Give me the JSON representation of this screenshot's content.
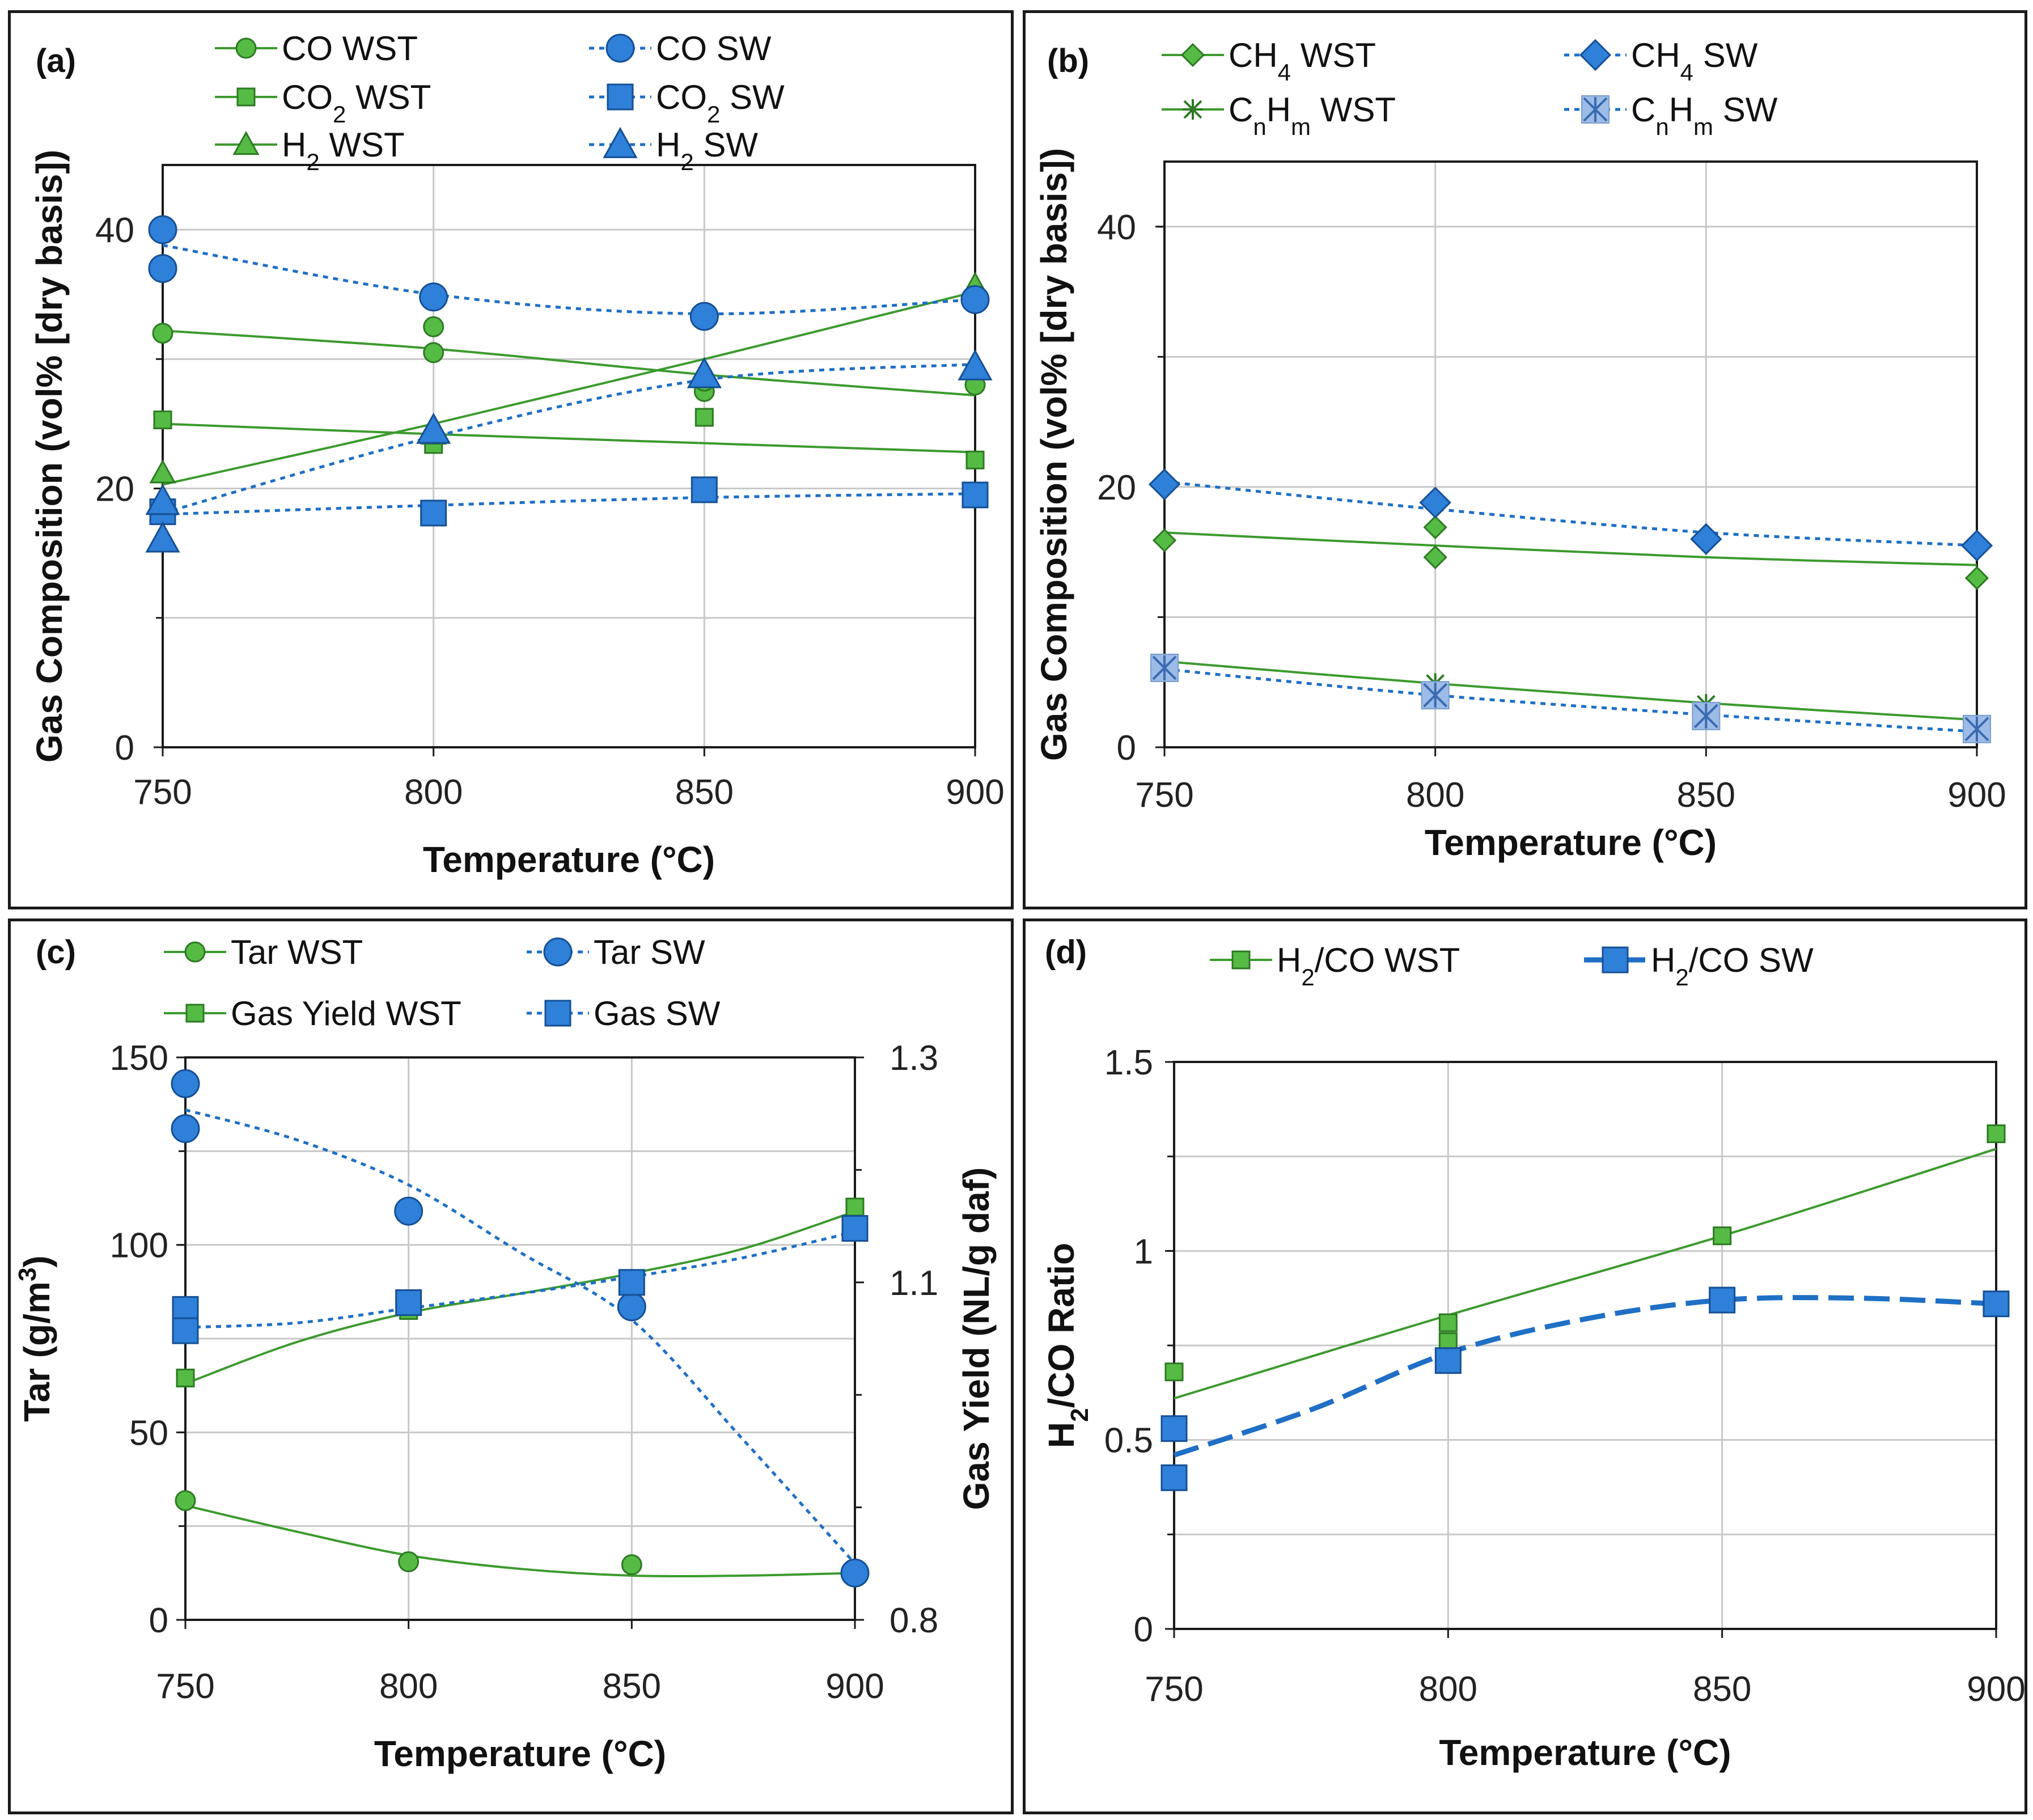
{
  "colors": {
    "green": "#3c9a2e",
    "green_fill": "#55bb44",
    "green_stroke": "#2c7a22",
    "blue": "#1f6fc5",
    "blue_fill": "#2e80d8",
    "blue_stroke": "#154f95",
    "light_blue_fill": "#9cbbe6",
    "grid": "#c8c8c8"
  },
  "chart_data": [
    {
      "id": "a",
      "type": "scatter",
      "panel_label": "(a)",
      "xlabel": "Temperature (°C)",
      "ylabel": "Gas Composition (vol% [dry basis])",
      "xlim": [
        750,
        900
      ],
      "ylim": [
        0,
        45
      ],
      "xticks": [
        750,
        800,
        850,
        900
      ],
      "xtick_labels": [
        "750",
        "800",
        "850",
        "900"
      ],
      "yticks": [
        0,
        20,
        40
      ],
      "ytick_labels": [
        "0",
        "20",
        "40"
      ],
      "ygrid": [
        10,
        20,
        30,
        40
      ],
      "series": [
        {
          "name": "CO WST",
          "legend_main": "CO",
          "legend_sub": "",
          "legend_tail": " WST",
          "color": "green",
          "marker": "circle",
          "line": "solid",
          "points": [
            [
              750,
              32.0
            ],
            [
              800,
              32.5
            ],
            [
              800,
              30.5
            ],
            [
              850,
              27.5
            ],
            [
              850,
              28.3
            ],
            [
              900,
              28.0
            ]
          ],
          "trend": [
            [
              750,
              32.2
            ],
            [
              800,
              30.8
            ],
            [
              850,
              28.8
            ],
            [
              900,
              27.2
            ]
          ]
        },
        {
          "name": "CO2 WST",
          "legend_main": "CO",
          "legend_sub": "2",
          "legend_tail": " WST",
          "color": "green",
          "marker": "square",
          "line": "solid",
          "points": [
            [
              750,
              25.3
            ],
            [
              800,
              23.4
            ],
            [
              850,
              25.5
            ],
            [
              900,
              22.2
            ]
          ],
          "trend": [
            [
              750,
              25.0
            ],
            [
              800,
              24.2
            ],
            [
              850,
              23.5
            ],
            [
              900,
              22.8
            ]
          ]
        },
        {
          "name": "H2 WST",
          "legend_main": "H",
          "legend_sub": "2",
          "legend_tail": " WST",
          "color": "green",
          "marker": "triangle",
          "line": "solid",
          "points": [
            [
              750,
              21.2
            ],
            [
              800,
              24.2
            ],
            [
              800,
              24.6
            ],
            [
              850,
              29.1
            ],
            [
              900,
              35.7
            ]
          ],
          "trend": [
            [
              750,
              20.3
            ],
            [
              800,
              25.0
            ],
            [
              850,
              30.0
            ],
            [
              900,
              35.2
            ]
          ]
        },
        {
          "name": "CO SW",
          "legend_main": "CO",
          "legend_sub": "",
          "legend_tail": " SW",
          "color": "blue",
          "marker": "circle",
          "line": "dotted",
          "points": [
            [
              750,
              40.0
            ],
            [
              750,
              37.0
            ],
            [
              800,
              34.8
            ],
            [
              850,
              33.3
            ],
            [
              900,
              34.6
            ]
          ],
          "trend": [
            [
              750,
              38.8
            ],
            [
              800,
              35.0
            ],
            [
              850,
              33.5
            ],
            [
              900,
              34.6
            ]
          ]
        },
        {
          "name": "CO2 SW",
          "legend_main": "CO",
          "legend_sub": "2",
          "legend_tail": " SW",
          "color": "blue",
          "marker": "square",
          "line": "dotted",
          "points": [
            [
              750,
              18.2
            ],
            [
              800,
              18.1
            ],
            [
              850,
              19.9
            ],
            [
              900,
              19.5
            ]
          ],
          "trend": [
            [
              750,
              18.0
            ],
            [
              800,
              18.7
            ],
            [
              850,
              19.3
            ],
            [
              900,
              19.6
            ]
          ]
        },
        {
          "name": "H2 SW",
          "legend_main": "H",
          "legend_sub": "2",
          "legend_tail": " SW",
          "color": "blue",
          "marker": "triangle",
          "line": "dotted",
          "points": [
            [
              750,
              19.0
            ],
            [
              750,
              16.1
            ],
            [
              800,
              24.5
            ],
            [
              850,
              28.8
            ],
            [
              900,
              29.4
            ]
          ],
          "trend": [
            [
              750,
              18.1
            ],
            [
              800,
              24.0
            ],
            [
              850,
              28.4
            ],
            [
              900,
              29.6
            ]
          ]
        }
      ]
    },
    {
      "id": "b",
      "type": "scatter",
      "panel_label": "(b)",
      "xlabel": "Temperature (°C)",
      "ylabel": "Gas Composition (vol% [dry basis])",
      "xlim": [
        750,
        900
      ],
      "ylim": [
        0,
        45
      ],
      "xticks": [
        750,
        800,
        850,
        900
      ],
      "xtick_labels": [
        "750",
        "800",
        "850",
        "900"
      ],
      "yticks": [
        0,
        20,
        40
      ],
      "ytick_labels": [
        "0",
        "20",
        "40"
      ],
      "ygrid": [
        10,
        20,
        30,
        40
      ],
      "series": [
        {
          "name": "CH4 WST",
          "legend_main": "CH",
          "legend_sub": "4",
          "legend_tail": " WST",
          "color": "green",
          "marker": "diamond",
          "line": "solid",
          "points": [
            [
              750,
              15.9
            ],
            [
              800,
              16.9
            ],
            [
              800,
              14.6
            ],
            [
              850,
              15.8
            ],
            [
              900,
              13.0
            ]
          ],
          "trend": [
            [
              750,
              16.5
            ],
            [
              800,
              15.5
            ],
            [
              850,
              14.6
            ],
            [
              900,
              14.0
            ]
          ]
        },
        {
          "name": "CnHm WST",
          "legend_main": "C",
          "legend_sub": "n",
          "legend_main2": "H",
          "legend_sub2": "m",
          "legend_tail": " WST",
          "color": "green",
          "marker": "star",
          "line": "solid",
          "points": [
            [
              750,
              6.2
            ],
            [
              800,
              4.9
            ],
            [
              850,
              3.3
            ],
            [
              900,
              1.4
            ]
          ],
          "trend": [
            [
              750,
              6.6
            ],
            [
              800,
              4.9
            ],
            [
              850,
              3.4
            ],
            [
              900,
              2.1
            ]
          ]
        },
        {
          "name": "CH4 SW",
          "legend_main": "CH",
          "legend_sub": "4",
          "legend_tail": " SW",
          "color": "blue",
          "marker": "diamond",
          "line": "dotted",
          "points": [
            [
              750,
              20.2
            ],
            [
              800,
              18.8
            ],
            [
              850,
              16.0
            ],
            [
              900,
              15.5
            ]
          ],
          "trend": [
            [
              750,
              20.4
            ],
            [
              800,
              18.3
            ],
            [
              850,
              16.5
            ],
            [
              900,
              15.5
            ]
          ]
        },
        {
          "name": "CnHm SW",
          "legend_main": "C",
          "legend_sub": "n",
          "legend_main2": "H",
          "legend_sub2": "m",
          "legend_tail": " SW",
          "color": "blue",
          "marker": "boxstar",
          "line": "dotted",
          "points": [
            [
              750,
              6.1
            ],
            [
              800,
              4.0
            ],
            [
              850,
              2.4
            ],
            [
              900,
              1.4
            ]
          ],
          "trend": [
            [
              750,
              6.0
            ],
            [
              800,
              4.0
            ],
            [
              850,
              2.5
            ],
            [
              900,
              1.2
            ]
          ]
        }
      ]
    },
    {
      "id": "c",
      "type": "scatter",
      "panel_label": "(c)",
      "xlabel": "Temperature (°C)",
      "ylabel": "Tar (g/m",
      "ylabel_sup": "3",
      "ylabel_tail": ")",
      "y2label": "Gas Yield (NL/g daf)",
      "xlim": [
        750,
        900
      ],
      "ylim": [
        0,
        150
      ],
      "y2lim": [
        0.8,
        1.3
      ],
      "xticks": [
        750,
        800,
        850,
        900
      ],
      "xtick_labels": [
        "750",
        "800",
        "850",
        "900"
      ],
      "yticks": [
        0,
        50,
        100,
        150
      ],
      "ytick_labels": [
        "0",
        "50",
        "100",
        "150"
      ],
      "ygrid": [
        25,
        50,
        75,
        100,
        125
      ],
      "y2ticks": [
        0.8,
        1.1,
        1.3
      ],
      "y2tick_labels": [
        "0.8",
        "1.1",
        "1.3"
      ],
      "y2minor": [
        0.9,
        1.0,
        1.2
      ],
      "series": [
        {
          "name": "Tar WST",
          "legend_main": "Tar WST",
          "legend_sub": "",
          "legend_tail": "",
          "color": "green",
          "marker": "circle",
          "line": "solid",
          "axis": "left",
          "points": [
            [
              750,
              31.8
            ],
            [
              800,
              15.5
            ],
            [
              850,
              14.7
            ],
            [
              900,
              12.5
            ]
          ],
          "trend": [
            [
              750,
              30.5
            ],
            [
              775,
              23.5
            ],
            [
              800,
              17.2
            ],
            [
              825,
              13.6
            ],
            [
              850,
              11.8
            ],
            [
              875,
              11.8
            ],
            [
              900,
              12.5
            ]
          ]
        },
        {
          "name": "Gas Yield WST",
          "legend_main": "Gas Yield WST",
          "legend_sub": "",
          "legend_tail": "",
          "color": "green",
          "marker": "square",
          "line": "solid",
          "axis": "right",
          "points": [
            [
              750,
              1.015
            ],
            [
              800,
              1.075
            ],
            [
              850,
              1.1
            ],
            [
              900,
              1.167
            ]
          ],
          "trend": [
            [
              750,
              1.01
            ],
            [
              775,
              1.047
            ],
            [
              800,
              1.073
            ],
            [
              825,
              1.09
            ],
            [
              850,
              1.108
            ],
            [
              875,
              1.13
            ],
            [
              900,
              1.163
            ]
          ]
        },
        {
          "name": "Tar SW",
          "legend_main": "Tar SW",
          "legend_sub": "",
          "legend_tail": "",
          "color": "blue",
          "marker": "circle",
          "line": "dotted",
          "axis": "left",
          "points": [
            [
              750,
              143
            ],
            [
              750,
              131
            ],
            [
              800,
              109
            ],
            [
              850,
              83.5
            ],
            [
              900,
              12.5
            ]
          ],
          "trend": [
            [
              750,
              136
            ],
            [
              775,
              128
            ],
            [
              800,
              116
            ],
            [
              825,
              98
            ],
            [
              850,
              80
            ],
            [
              875,
              48
            ],
            [
              900,
              15
            ]
          ]
        },
        {
          "name": "Gas SW",
          "legend_main": "Gas SW",
          "legend_sub": "",
          "legend_tail": "",
          "color": "blue",
          "marker": "square",
          "line": "dotted",
          "axis": "right",
          "points": [
            [
              750,
              1.076
            ],
            [
              750,
              1.057
            ],
            [
              800,
              1.082
            ],
            [
              850,
              1.1
            ],
            [
              900,
              1.148
            ]
          ],
          "trend": [
            [
              750,
              1.06
            ],
            [
              775,
              1.064
            ],
            [
              800,
              1.077
            ],
            [
              825,
              1.09
            ],
            [
              850,
              1.105
            ],
            [
              875,
              1.122
            ],
            [
              900,
              1.145
            ]
          ]
        }
      ]
    },
    {
      "id": "d",
      "type": "scatter",
      "panel_label": "(d)",
      "xlabel": "Temperature (°C)",
      "ylabel": "H",
      "ylabel_sub": "2",
      "ylabel_tail": "/CO Ratio",
      "xlim": [
        750,
        900
      ],
      "ylim": [
        0,
        1.5
      ],
      "xticks": [
        750,
        800,
        850,
        900
      ],
      "xtick_labels": [
        "750",
        "800",
        "850",
        "900"
      ],
      "yticks": [
        0,
        0.5,
        1,
        1.5
      ],
      "ytick_labels": [
        "0",
        "0.5",
        "1",
        "1.5"
      ],
      "ygrid": [
        0.25,
        0.5,
        0.75,
        1.0,
        1.25,
        1.5
      ],
      "series": [
        {
          "name": "H2/CO WST",
          "legend_main": "H",
          "legend_sub": "2",
          "legend_tail": "/CO WST",
          "color": "green",
          "marker": "square",
          "line": "solid",
          "points": [
            [
              750,
              0.68
            ],
            [
              800,
              0.81
            ],
            [
              800,
              0.76
            ],
            [
              850,
              1.04
            ],
            [
              900,
              1.31
            ]
          ],
          "trend": [
            [
              750,
              0.61
            ],
            [
              800,
              0.83
            ],
            [
              850,
              1.04
            ],
            [
              900,
              1.27
            ]
          ]
        },
        {
          "name": "H2/CO SW",
          "legend_main": "H",
          "legend_sub": "2",
          "legend_tail": "/CO SW",
          "color": "blue",
          "marker": "square",
          "line": "dashed",
          "points": [
            [
              750,
              0.53
            ],
            [
              750,
              0.4
            ],
            [
              800,
              0.71
            ],
            [
              850,
              0.87
            ],
            [
              900,
              0.86
            ]
          ],
          "trend": [
            [
              750,
              0.46
            ],
            [
              775,
              0.58
            ],
            [
              800,
              0.73
            ],
            [
              825,
              0.82
            ],
            [
              850,
              0.87
            ],
            [
              875,
              0.875
            ],
            [
              900,
              0.86
            ]
          ]
        }
      ]
    }
  ]
}
